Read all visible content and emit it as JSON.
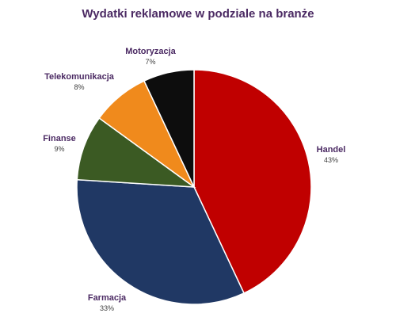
{
  "chart_data": {
    "type": "pie",
    "title": "Wydatki reklamowe w podziale na branże",
    "slices": [
      {
        "label": "Handel",
        "value": 43,
        "display": "43%",
        "color": "#c00000"
      },
      {
        "label": "Farmacja",
        "value": 33,
        "display": "33%",
        "color": "#203864"
      },
      {
        "label": "Finanse",
        "value": 9,
        "display": "9%",
        "color": "#3b5a23"
      },
      {
        "label": "Telekomunikacja",
        "value": 8,
        "display": "8%",
        "color": "#f08a1c"
      },
      {
        "label": "Motoryzacja",
        "value": 7,
        "display": "7%",
        "color": "#0d0d0d"
      }
    ],
    "legend": "none"
  }
}
